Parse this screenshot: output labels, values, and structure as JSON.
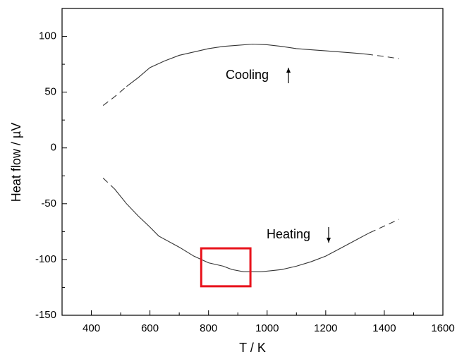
{
  "chart_data": {
    "type": "line",
    "x_label": "T / K",
    "y_label": "Heat flow / µV",
    "xlim": [
      300,
      1600
    ],
    "ylim": [
      -150,
      125
    ],
    "xticks": [
      400,
      600,
      800,
      1000,
      1200,
      1400,
      1600
    ],
    "yticks": [
      -150,
      -100,
      -50,
      0,
      50,
      100
    ],
    "annotations": [
      {
        "text": "Cooling",
        "arrow": "up"
      },
      {
        "text": "Heating",
        "arrow": "down"
      }
    ],
    "highlight": {
      "x": [
        775,
        943
      ],
      "y": [
        -124,
        -90
      ],
      "color": "#e8121b"
    },
    "series": [
      {
        "color": "#333333",
        "dashed": true,
        "x": [
          440,
          480,
          520
        ],
        "values": [
          38,
          46,
          55
        ]
      },
      {
        "color": "#333333",
        "dashed": false,
        "x": [
          520,
          560,
          600,
          650,
          700,
          750,
          800,
          850,
          900,
          950,
          1000,
          1050,
          1100,
          1150,
          1200,
          1250,
          1300,
          1340
        ],
        "values": [
          55,
          63,
          72,
          78,
          83,
          86,
          89,
          91,
          92,
          93,
          92.5,
          91,
          89,
          88,
          87,
          86,
          85,
          84
        ]
      },
      {
        "color": "#333333",
        "dashed": true,
        "x": [
          1340,
          1400,
          1450
        ],
        "values": [
          84,
          82,
          80
        ]
      },
      {
        "color": "#333333",
        "dashed": true,
        "x": [
          440,
          480
        ],
        "values": [
          -27,
          -37
        ]
      },
      {
        "color": "#333333",
        "dashed": false,
        "x": [
          480,
          520,
          560,
          600,
          630,
          700,
          750,
          800,
          850,
          880,
          920,
          980,
          1050,
          1100,
          1150,
          1200,
          1250,
          1300,
          1350
        ],
        "values": [
          -37,
          -50,
          -61,
          -71,
          -79,
          -89,
          -97,
          -103,
          -106,
          -109,
          -111,
          -111,
          -109,
          -106,
          -102,
          -97,
          -90,
          -83,
          -76
        ]
      },
      {
        "color": "#333333",
        "dashed": true,
        "x": [
          1350,
          1400,
          1450
        ],
        "values": [
          -76,
          -70,
          -64
        ]
      }
    ]
  }
}
